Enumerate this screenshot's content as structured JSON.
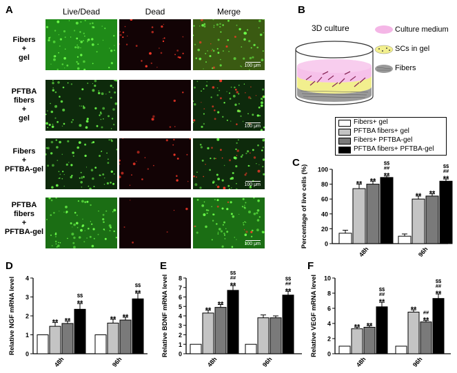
{
  "panel_letters": {
    "A": "A",
    "B": "B",
    "C": "C",
    "D": "D",
    "E": "E",
    "F": "F"
  },
  "micrographs": {
    "columns": [
      "Live/Dead",
      "Dead",
      "Merge"
    ],
    "rows": [
      {
        "label_lines": [
          "Fibers",
          "+",
          "gel"
        ]
      },
      {
        "label_lines": [
          "PFTBA",
          "fibers",
          "+",
          "gel"
        ]
      },
      {
        "label_lines": [
          "Fibers",
          "+",
          "PFTBA-gel"
        ]
      },
      {
        "label_lines": [
          "PFTBA",
          "fibers",
          "+",
          "PFTBA-gel"
        ]
      }
    ],
    "scale_bar": "100 μm"
  },
  "panel_b": {
    "title": "3D culture",
    "legend": [
      {
        "label": "Culture medium",
        "color": "#f4b6e6"
      },
      {
        "label": "SCs in gel",
        "color": "#f2ef8e"
      },
      {
        "label": "Fibers",
        "color": "#9a9a9a"
      }
    ]
  },
  "legend_groups": [
    {
      "label": "Fibers+ gel",
      "color": "#ffffff"
    },
    {
      "label": "PFTBA fibers+ gel",
      "color": "#c4c4c4"
    },
    {
      "label": "Fibers+ PFTBA-gel",
      "color": "#7a7a7a"
    },
    {
      "label": "PFTBA fibers+ PFTBA-gel",
      "color": "#000000"
    }
  ],
  "chart_data": [
    {
      "id": "C",
      "type": "bar",
      "ylabel": "Percentage of live cells (%)",
      "ylim": [
        0,
        100
      ],
      "yticks": [
        0,
        20,
        40,
        60,
        80,
        100
      ],
      "categories": [
        "48h",
        "96h"
      ],
      "series": [
        {
          "name": "Fibers+ gel",
          "values": [
            14,
            10
          ],
          "errors": [
            4,
            3
          ],
          "annotations": [
            "",
            ""
          ]
        },
        {
          "name": "PFTBA fibers+ gel",
          "values": [
            74,
            60
          ],
          "errors": [
            6,
            4
          ],
          "annotations": [
            "**",
            "**"
          ]
        },
        {
          "name": "Fibers+ PFTBA-gel",
          "values": [
            80,
            64
          ],
          "errors": [
            4,
            3
          ],
          "annotations": [
            "**",
            "**"
          ]
        },
        {
          "name": "PFTBA fibers+ PFTBA-gel",
          "values": [
            89,
            84
          ],
          "errors": [
            2,
            3
          ],
          "annotations": [
            "$$\n##\n**",
            "$$\n##\n**"
          ]
        }
      ]
    },
    {
      "id": "D",
      "type": "bar",
      "ylabel": "Relative NGF mRNA level",
      "ylim": [
        0,
        4
      ],
      "yticks": [
        0,
        1,
        2,
        3,
        4
      ],
      "categories": [
        "48h",
        "96h"
      ],
      "series": [
        {
          "name": "Fibers+ gel",
          "values": [
            1,
            1
          ],
          "errors": [
            0,
            0
          ],
          "annotations": [
            "",
            ""
          ]
        },
        {
          "name": "PFTBA fibers+ gel",
          "values": [
            1.45,
            1.62
          ],
          "errors": [
            0.2,
            0.2
          ],
          "annotations": [
            "**",
            "**"
          ]
        },
        {
          "name": "Fibers+ PFTBA-gel",
          "values": [
            1.6,
            1.78
          ],
          "errors": [
            0.12,
            0.15
          ],
          "annotations": [
            "**",
            "**"
          ]
        },
        {
          "name": "PFTBA fibers+ PFTBA-gel",
          "values": [
            2.35,
            2.9
          ],
          "errors": [
            0.3,
            0.3
          ],
          "annotations": [
            "$$\n**",
            "$$\n**"
          ]
        }
      ]
    },
    {
      "id": "E",
      "type": "bar",
      "ylabel": "Relative BDNF mRNA level",
      "ylim": [
        0,
        8
      ],
      "yticks": [
        0,
        1,
        2,
        3,
        4,
        5,
        6,
        7,
        8
      ],
      "categories": [
        "48h",
        "96h"
      ],
      "series": [
        {
          "name": "Fibers+ gel",
          "values": [
            1,
            1
          ],
          "errors": [
            0,
            0
          ],
          "annotations": [
            "",
            ""
          ]
        },
        {
          "name": "PFTBA fibers+ gel",
          "values": [
            4.3,
            3.8
          ],
          "errors": [
            0.3,
            0.3
          ],
          "annotations": [
            "**",
            ""
          ]
        },
        {
          "name": "Fibers+ PFTBA-gel",
          "values": [
            4.9,
            3.8
          ],
          "errors": [
            0.3,
            0.2
          ],
          "annotations": [
            "**",
            ""
          ]
        },
        {
          "name": "PFTBA fibers+ PFTBA-gel",
          "values": [
            6.7,
            6.2
          ],
          "errors": [
            0.5,
            0.4
          ],
          "annotations": [
            "$$\n##\n**",
            "$$\n##\n**"
          ]
        }
      ]
    },
    {
      "id": "F",
      "type": "bar",
      "ylabel": "Relative VEGF mRNA level",
      "ylim": [
        0,
        10
      ],
      "yticks": [
        0,
        2,
        4,
        6,
        8,
        10
      ],
      "categories": [
        "48h",
        "96h"
      ],
      "series": [
        {
          "name": "Fibers+ gel",
          "values": [
            1,
            1
          ],
          "errors": [
            0,
            0
          ],
          "annotations": [
            "",
            ""
          ]
        },
        {
          "name": "PFTBA fibers+ gel",
          "values": [
            3.3,
            5.5
          ],
          "errors": [
            0.2,
            0.3
          ],
          "annotations": [
            "**",
            "**"
          ]
        },
        {
          "name": "Fibers+ PFTBA-gel",
          "values": [
            3.5,
            4.2
          ],
          "errors": [
            0.2,
            0.2
          ],
          "annotations": [
            "**",
            "##\n**"
          ]
        },
        {
          "name": "PFTBA fibers+ PFTBA-gel",
          "values": [
            6.2,
            7.3
          ],
          "errors": [
            0.6,
            0.6
          ],
          "annotations": [
            "$$\n##\n**",
            "$$\n##\n**"
          ]
        }
      ]
    }
  ]
}
